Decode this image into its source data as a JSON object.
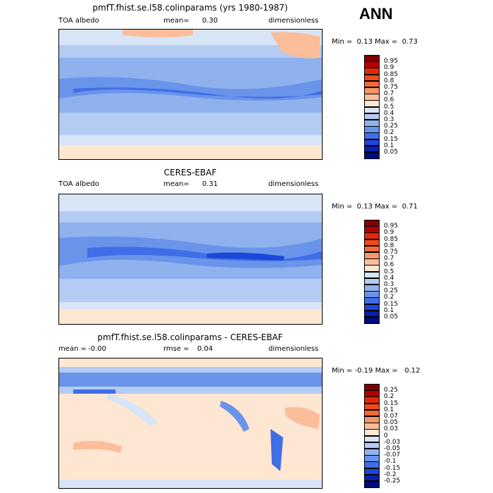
{
  "season": "ANN",
  "panels": [
    {
      "title": "pmfT.fhist.se.l58.colinparams (yrs 1980-1987)",
      "left_label": "TOA albedo",
      "center_label": "mean=",
      "center_value": "0.30",
      "right_label": "dimensionless",
      "min_label": "Min =",
      "min_value": "0.13",
      "max_label": "Max =",
      "max_value": "0.73",
      "colorbar": {
        "labels": [
          "0.95",
          "0.9",
          "0.85",
          "0.8",
          "0.75",
          "0.7",
          "0.6",
          "0.5",
          "0.4",
          "0.3",
          "0.25",
          "0.2",
          "0.15",
          "0.1",
          "0.05"
        ],
        "colors": [
          "#7f0000",
          "#b30000",
          "#e0290a",
          "#f04a1a",
          "#f26b3a",
          "#f7956b",
          "#fbbd9a",
          "#fde6d2",
          "#d8e5f7",
          "#b4ccf3",
          "#8fb1ee",
          "#6a93ea",
          "#3f6ee6",
          "#1e46d9",
          "#0a1fae",
          "#000c7a"
        ]
      }
    },
    {
      "title": "CERES-EBAF",
      "left_label": "TOA albedo",
      "center_label": "mean=",
      "center_value": "0.31",
      "right_label": "dimensionless",
      "min_label": "Min =",
      "min_value": "0.13",
      "max_label": "Max =",
      "max_value": "0.71",
      "colorbar": {
        "labels": [
          "0.95",
          "0.9",
          "0.85",
          "0.8",
          "0.75",
          "0.7",
          "0.6",
          "0.5",
          "0.4",
          "0.3",
          "0.25",
          "0.2",
          "0.15",
          "0.1",
          "0.05"
        ],
        "colors": [
          "#7f0000",
          "#b30000",
          "#e0290a",
          "#f04a1a",
          "#f26b3a",
          "#f7956b",
          "#fbbd9a",
          "#fde6d2",
          "#d8e5f7",
          "#b4ccf3",
          "#8fb1ee",
          "#6a93ea",
          "#3f6ee6",
          "#1e46d9",
          "#0a1fae",
          "#000c7a"
        ]
      }
    },
    {
      "title": "pmfT.fhist.se.l58.colinparams - CERES-EBAF",
      "left_label": "mean =",
      "left_value": "-0.00",
      "center_label": "rmse =",
      "center_value": "0.04",
      "right_label": "dimensionless",
      "min_label": "Min =",
      "min_value": "-0.19",
      "max_label": "Max =",
      "max_value": "0.12",
      "colorbar": {
        "labels": [
          "0.25",
          "0.2",
          "0.15",
          "0.1",
          "0.07",
          "0.05",
          "0.03",
          "0",
          "-0.03",
          "-0.05",
          "-0.07",
          "-0.1",
          "-0.15",
          "-0.2",
          "-0.25"
        ],
        "colors": [
          "#7f0000",
          "#b30000",
          "#e0290a",
          "#f04a1a",
          "#f26b3a",
          "#f7956b",
          "#fbbd9a",
          "#fde6d2",
          "#d8e5f7",
          "#b4ccf3",
          "#8fb1ee",
          "#6a93ea",
          "#3f6ee6",
          "#1e46d9",
          "#0a1fae",
          "#000c7a"
        ]
      }
    }
  ],
  "chart_data": [
    {
      "type": "heatmap",
      "title": "pmfT.fhist.se.l58.colinparams (yrs 1980-1987)",
      "variable": "TOA albedo",
      "units": "dimensionless",
      "mean": 0.3,
      "min": 0.13,
      "max": 0.73,
      "levels": [
        0.05,
        0.1,
        0.15,
        0.2,
        0.25,
        0.3,
        0.4,
        0.5,
        0.6,
        0.7,
        0.75,
        0.8,
        0.85,
        0.9,
        0.95
      ]
    },
    {
      "type": "heatmap",
      "title": "CERES-EBAF",
      "variable": "TOA albedo",
      "units": "dimensionless",
      "mean": 0.31,
      "min": 0.13,
      "max": 0.71,
      "levels": [
        0.05,
        0.1,
        0.15,
        0.2,
        0.25,
        0.3,
        0.4,
        0.5,
        0.6,
        0.7,
        0.75,
        0.8,
        0.85,
        0.9,
        0.95
      ]
    },
    {
      "type": "heatmap",
      "title": "pmfT.fhist.se.l58.colinparams - CERES-EBAF",
      "units": "dimensionless",
      "mean": -0.0,
      "rmse": 0.04,
      "min": -0.19,
      "max": 0.12,
      "levels": [
        -0.25,
        -0.2,
        -0.15,
        -0.1,
        -0.07,
        -0.05,
        -0.03,
        0,
        0.03,
        0.05,
        0.07,
        0.1,
        0.15,
        0.2,
        0.25
      ]
    }
  ]
}
